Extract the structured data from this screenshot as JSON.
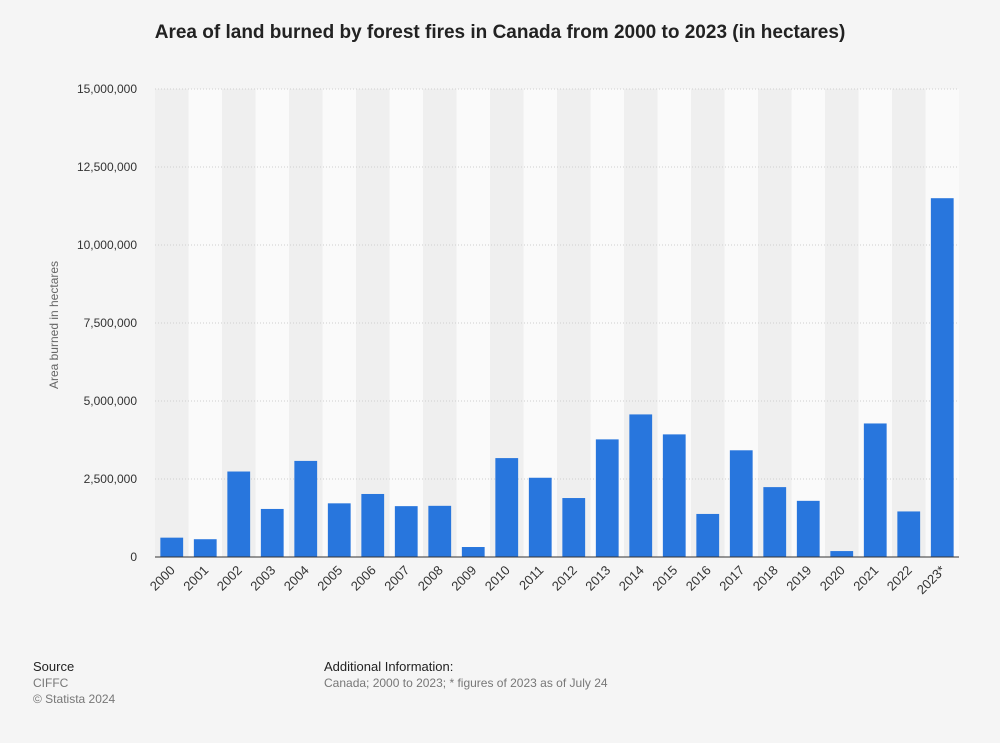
{
  "chart_data": {
    "type": "bar",
    "title": "Area of land burned by forest fires in Canada from 2000 to 2023 (in hectares)",
    "ylabel": "Area burned in hectares",
    "xlabel": "",
    "ylim": [
      0,
      15000000
    ],
    "yticks": [
      0,
      2500000,
      5000000,
      7500000,
      10000000,
      12500000,
      15000000
    ],
    "ytick_labels": [
      "0",
      "2,500,000",
      "5,000,000",
      "7,500,000",
      "10,000,000",
      "12,500,000",
      "15,000,000"
    ],
    "grid": true,
    "bar_color": "#2876dd",
    "categories": [
      "2000",
      "2001",
      "2002",
      "2003",
      "2004",
      "2005",
      "2006",
      "2007",
      "2008",
      "2009",
      "2010",
      "2011",
      "2012",
      "2013",
      "2014",
      "2015",
      "2016",
      "2017",
      "2018",
      "2019",
      "2020",
      "2021",
      "2022",
      "2023*"
    ],
    "values": [
      620000,
      570000,
      2740000,
      1540000,
      3080000,
      1720000,
      2020000,
      1630000,
      1640000,
      320000,
      3170000,
      2540000,
      1890000,
      3770000,
      4570000,
      3930000,
      1380000,
      3420000,
      2240000,
      1800000,
      190000,
      4280000,
      1460000,
      11500000
    ]
  },
  "footer": {
    "source_heading": "Source",
    "source_lines": [
      "CIFFC",
      "© Statista 2024"
    ],
    "additional_heading": "Additional Information:",
    "additional_text": "Canada; 2000 to 2023; * figures of 2023 as of July 24"
  }
}
